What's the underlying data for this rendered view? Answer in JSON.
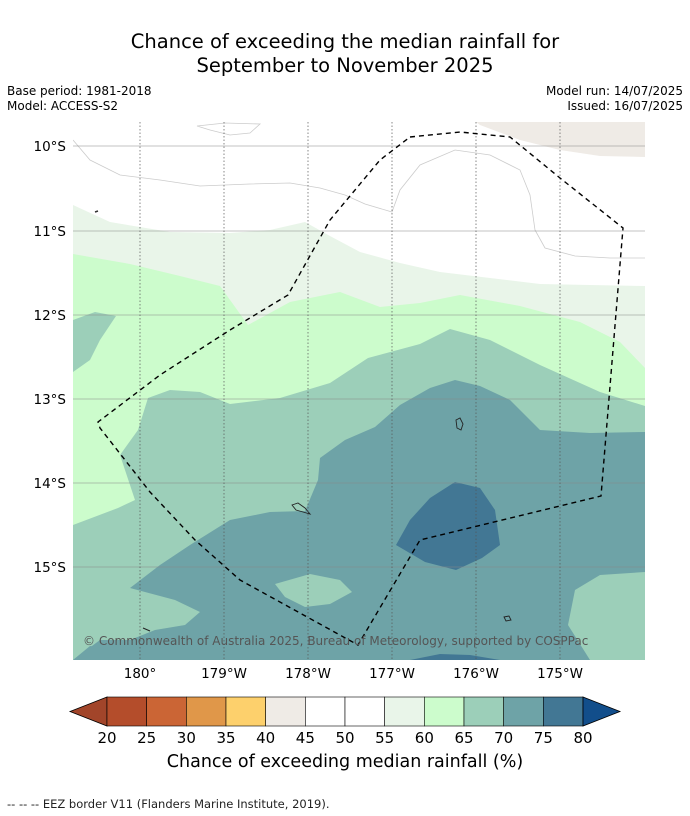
{
  "title": {
    "line1": "Chance of exceeding the median rainfall for",
    "line2": "September to November 2025"
  },
  "meta": {
    "base_period": "Base period: 1981-2018",
    "model": "Model: ACCESS-S2",
    "model_run": "Model run: 14/07/2025",
    "issued": "Issued: 16/07/2025"
  },
  "map": {
    "latitude_labels": [
      "10°S",
      "11°S",
      "12°S",
      "13°S",
      "14°S",
      "15°S"
    ],
    "longitude_labels": [
      "180°",
      "179°W",
      "178°W",
      "177°W",
      "176°W",
      "175°W"
    ],
    "copyright": "© Commonwealth of Australia 2025, Bureau of Meteorology, supported by COSPPac",
    "colors": {
      "c40_45": "#efebe6",
      "c55_60": "#e9f5e9",
      "c60_65": "#ccfccc",
      "c65_70": "#9ccfb9",
      "c70_75": "#6ea3a7",
      "c75_80": "#427794",
      "eez_border": "#000000"
    }
  },
  "colorbar": {
    "ticks": [
      "20",
      "25",
      "30",
      "35",
      "40",
      "45",
      "50",
      "55",
      "60",
      "65",
      "70",
      "75",
      "80"
    ],
    "colors": [
      "#a2452a",
      "#b44d2b",
      "#cb6535",
      "#e09749",
      "#fdd06c",
      "#efebe6",
      "#ffffff",
      "#ffffff",
      "#e9f5e9",
      "#ccfccc",
      "#9ccfb9",
      "#6ea3a7",
      "#427794",
      "#124e8b"
    ],
    "label": "Chance of exceeding median rainfall (%)"
  },
  "footnote": "-- -- -- EEZ border V11 (Flanders Marine Institute, 2019)."
}
